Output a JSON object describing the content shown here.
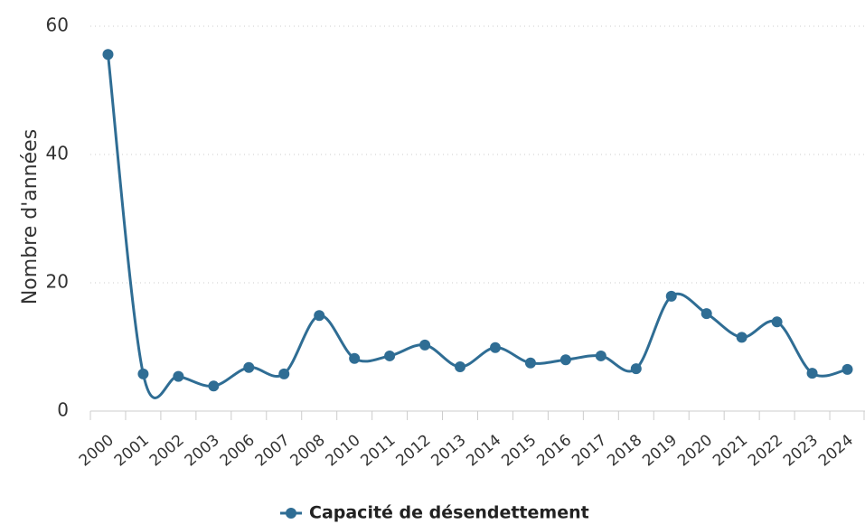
{
  "chart_data": {
    "type": "line",
    "y_label": "Nombre d'années",
    "categories": [
      "2000",
      "2001",
      "2002",
      "2003",
      "2006",
      "2007",
      "2008",
      "2010",
      "2011",
      "2012",
      "2013",
      "2014",
      "2015",
      "2016",
      "2017",
      "2018",
      "2019",
      "2020",
      "2021",
      "2022",
      "2023",
      "2024"
    ],
    "series": [
      {
        "name": "Capacité de désendettement",
        "color": "#2f6d94",
        "values": [
          55.6,
          5.8,
          5.4,
          3.9,
          6.8,
          5.8,
          14.9,
          8.2,
          8.6,
          10.3,
          6.9,
          9.9,
          7.5,
          8.0,
          8.6,
          6.6,
          17.9,
          15.2,
          11.5,
          13.9,
          5.9,
          6.5
        ]
      }
    ],
    "ylim": [
      0,
      60
    ],
    "yticks": [
      0,
      20,
      40,
      60
    ],
    "grid": true,
    "legend": "bottom"
  }
}
